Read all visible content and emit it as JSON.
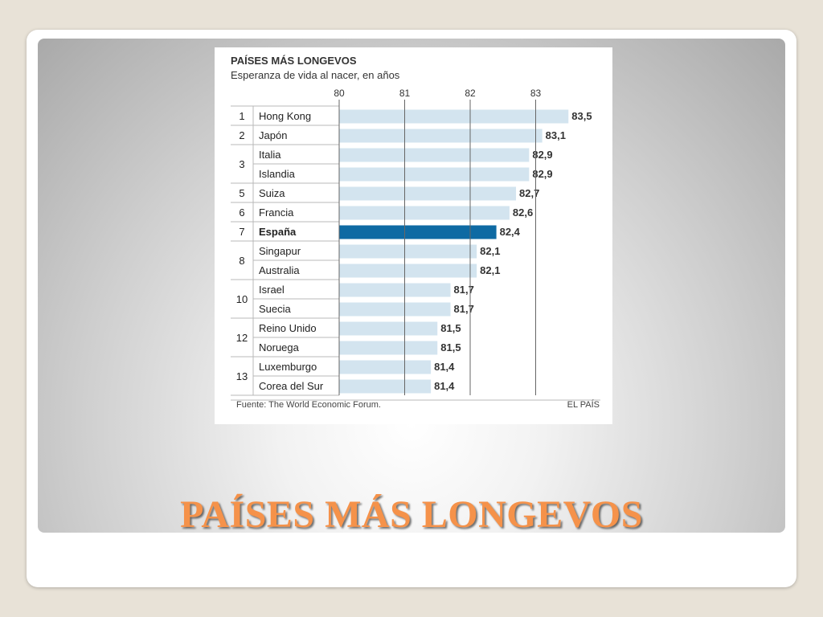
{
  "slide": {
    "title": "PAÍSES MÁS LONGEVOS"
  },
  "chart_card": {
    "source": "Fuente: The World Economic Forum.",
    "brand": "EL PAÍS"
  },
  "colors": {
    "bar": "#d3e4ef",
    "highlight_bar": "#0e6aa3",
    "title_orange": "#f5924a",
    "gridline": "#666666",
    "row_line": "#b9b9b9"
  },
  "chart_data": {
    "type": "bar",
    "orientation": "horizontal",
    "title": "PAÍSES MÁS LONGEVOS",
    "subtitle": "Esperanza de vida al nacer, en años",
    "xlim": [
      80,
      83.5
    ],
    "xticks": [
      80,
      81,
      82,
      83
    ],
    "grid": true,
    "highlight": "España",
    "categories": [
      "Hong Kong",
      "Japón",
      "Italia",
      "Islandia",
      "Suiza",
      "Francia",
      "España",
      "Singapur",
      "Australia",
      "Israel",
      "Suecia",
      "Reino Unido",
      "Noruega",
      "Luxemburgo",
      "Corea del Sur"
    ],
    "values": [
      83.5,
      83.1,
      82.9,
      82.9,
      82.7,
      82.6,
      82.4,
      82.1,
      82.1,
      81.7,
      81.7,
      81.5,
      81.5,
      81.4,
      81.4
    ],
    "value_labels": [
      "83,5",
      "83,1",
      "82,9",
      "82,9",
      "82,7",
      "82,6",
      "82,4",
      "82,1",
      "82,1",
      "81,7",
      "81,7",
      "81,5",
      "81,5",
      "81,4",
      "81,4"
    ],
    "ranks": [
      {
        "label": "1",
        "rows": [
          0
        ]
      },
      {
        "label": "2",
        "rows": [
          1
        ]
      },
      {
        "label": "3",
        "rows": [
          2,
          3
        ]
      },
      {
        "label": "5",
        "rows": [
          4
        ]
      },
      {
        "label": "6",
        "rows": [
          5
        ]
      },
      {
        "label": "7",
        "rows": [
          6
        ]
      },
      {
        "label": "8",
        "rows": [
          7,
          8
        ]
      },
      {
        "label": "10",
        "rows": [
          9,
          10
        ]
      },
      {
        "label": "12",
        "rows": [
          11,
          12
        ]
      },
      {
        "label": "13",
        "rows": [
          13,
          14
        ]
      }
    ]
  }
}
